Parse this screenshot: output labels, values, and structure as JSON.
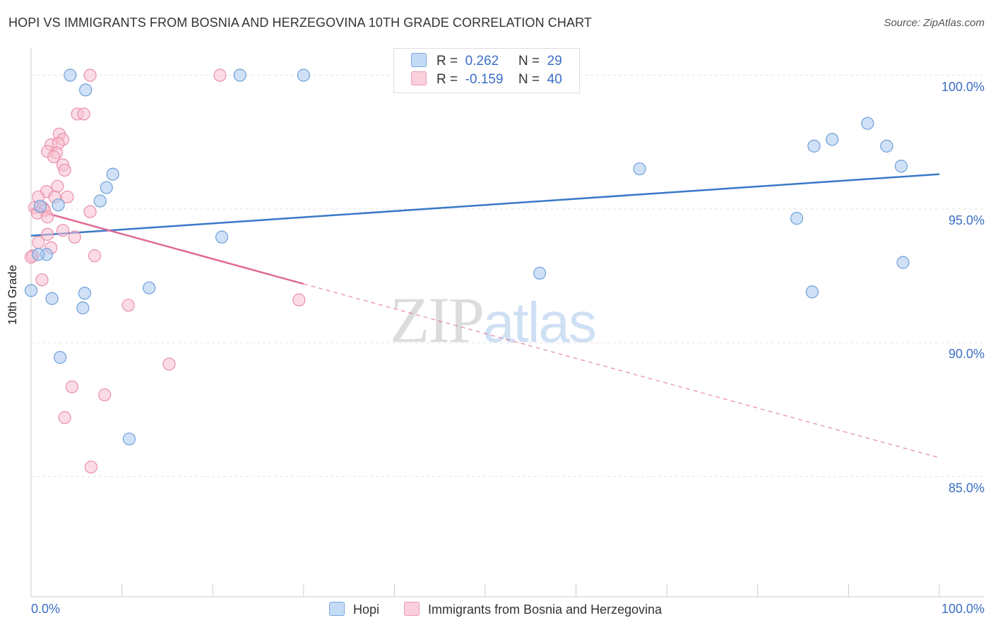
{
  "title": "HOPI VS IMMIGRANTS FROM BOSNIA AND HERZEGOVINA 10TH GRADE CORRELATION CHART",
  "source": "Source: ZipAtlas.com",
  "watermark": {
    "zip": "ZIP",
    "atlas": "atlas"
  },
  "colors": {
    "hopi": "#a9c9f0",
    "hopi_stroke": "#6f9fd8",
    "hopi_line": "#3a78c9",
    "bosnia": "#f7c0d0",
    "bosnia_stroke": "#e98fab",
    "bosnia_line": "#e06a95",
    "accent": "#3b6fc4"
  },
  "legend": {
    "hopi": {
      "r_label": "R =",
      "r_value": "0.262",
      "n_label": "N =",
      "n_value": "29"
    },
    "bosnia": {
      "r_label": "R =",
      "r_value": "-0.159",
      "n_label": "N =",
      "n_value": "40"
    }
  },
  "chart_data": {
    "type": "scatter",
    "title": "HOPI VS IMMIGRANTS FROM BOSNIA AND HERZEGOVINA 10TH GRADE CORRELATION CHART",
    "xlabel": "",
    "ylabel": "10th Grade",
    "xlim": [
      0,
      100
    ],
    "ylim": [
      80.5,
      100.7
    ],
    "x_tick_labels": [
      "0.0%",
      "100.0%"
    ],
    "y_ticks": [
      100,
      95,
      90,
      85
    ],
    "y_tick_labels": [
      "100.0%",
      "95.0%",
      "90.0%",
      "85.0%"
    ],
    "legend_position": "bottom-center",
    "series": [
      {
        "name": "Hopi",
        "points": [
          [
            4.3,
            100
          ],
          [
            6.0,
            99.45
          ],
          [
            23.0,
            100
          ],
          [
            30.0,
            100
          ],
          [
            9.0,
            96.3
          ],
          [
            8.3,
            95.8
          ],
          [
            7.6,
            95.3
          ],
          [
            3.0,
            95.15
          ],
          [
            1.0,
            95.1
          ],
          [
            21.0,
            93.95
          ],
          [
            1.7,
            93.3
          ],
          [
            0.8,
            93.3
          ],
          [
            0.0,
            91.95
          ],
          [
            5.9,
            91.85
          ],
          [
            2.3,
            91.65
          ],
          [
            5.7,
            91.3
          ],
          [
            13.0,
            92.05
          ],
          [
            3.2,
            89.45
          ],
          [
            10.8,
            86.4
          ],
          [
            56.0,
            92.6
          ],
          [
            67.0,
            96.5
          ],
          [
            86.2,
            97.35
          ],
          [
            88.2,
            97.6
          ],
          [
            92.1,
            98.2
          ],
          [
            94.2,
            97.35
          ],
          [
            95.8,
            96.6
          ],
          [
            96.0,
            93.0
          ],
          [
            84.3,
            94.65
          ],
          [
            86.0,
            91.9
          ]
        ],
        "trend": {
          "x": [
            0,
            100
          ],
          "y": [
            94.0,
            96.3
          ]
        }
      },
      {
        "name": "Immigrants from Bosnia and Herzegovina",
        "points": [
          [
            6.5,
            100
          ],
          [
            20.8,
            100
          ],
          [
            5.1,
            98.55
          ],
          [
            5.8,
            98.55
          ],
          [
            3.1,
            97.8
          ],
          [
            3.5,
            97.6
          ],
          [
            2.2,
            97.4
          ],
          [
            3.0,
            97.45
          ],
          [
            1.8,
            97.15
          ],
          [
            2.8,
            97.1
          ],
          [
            2.5,
            96.95
          ],
          [
            3.5,
            96.65
          ],
          [
            3.7,
            96.45
          ],
          [
            2.9,
            95.85
          ],
          [
            1.7,
            95.65
          ],
          [
            0.8,
            95.45
          ],
          [
            2.6,
            95.45
          ],
          [
            4.0,
            95.45
          ],
          [
            0.4,
            95.05
          ],
          [
            1.3,
            95.05
          ],
          [
            1.5,
            94.95
          ],
          [
            0.7,
            94.85
          ],
          [
            1.8,
            94.7
          ],
          [
            6.5,
            94.9
          ],
          [
            3.5,
            94.2
          ],
          [
            1.8,
            94.05
          ],
          [
            4.8,
            93.95
          ],
          [
            0.8,
            93.75
          ],
          [
            2.2,
            93.55
          ],
          [
            0.2,
            93.25
          ],
          [
            0.0,
            93.2
          ],
          [
            7.0,
            93.25
          ],
          [
            1.2,
            92.35
          ],
          [
            10.7,
            91.4
          ],
          [
            29.5,
            91.6
          ],
          [
            4.5,
            88.35
          ],
          [
            15.2,
            89.2
          ],
          [
            8.1,
            88.05
          ],
          [
            3.7,
            87.2
          ],
          [
            6.6,
            85.35
          ]
        ],
        "trend": {
          "x": [
            0,
            30
          ],
          "y": [
            95.0,
            92.2
          ]
        },
        "trend_extension": {
          "x": [
            30,
            100
          ],
          "y": [
            92.2,
            85.7
          ]
        }
      }
    ]
  },
  "bottom_legend": [
    "Hopi",
    "Immigrants from Bosnia and Herzegovina"
  ]
}
